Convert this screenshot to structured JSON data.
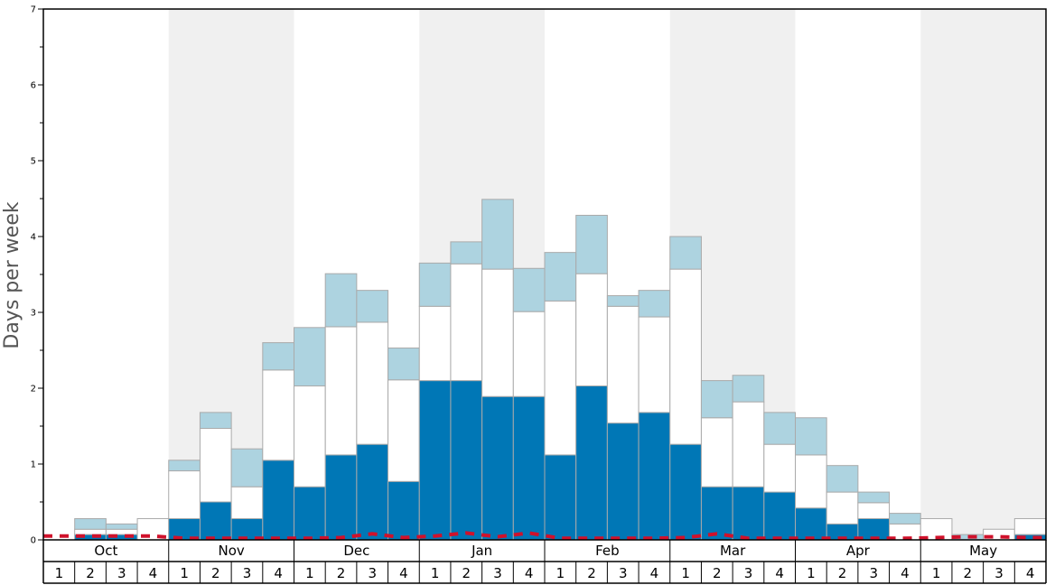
{
  "chart_data": {
    "type": "bar",
    "stacked": true,
    "ylabel": "Days per week",
    "ylim": [
      0,
      7
    ],
    "yticks": [
      0,
      1,
      2,
      3,
      4,
      5,
      6,
      7
    ],
    "months": [
      "Oct",
      "Nov",
      "Dec",
      "Jan",
      "Feb",
      "Mar",
      "Apr",
      "May"
    ],
    "week_labels": [
      "1",
      "2",
      "3",
      "4"
    ],
    "shaded_months": [
      "Nov",
      "Jan",
      "Mar",
      "May"
    ],
    "grid": false,
    "colors": {
      "dark": "#0077b6",
      "white": "#ffffff",
      "light": "#add3e0",
      "line": "#d0112b",
      "shade": "#f0f0f0",
      "bar_edge": "#aaaaaa"
    },
    "series": [
      {
        "key": "dark",
        "values": [
          0,
          0.07,
          0.07,
          0,
          0.28,
          0.5,
          0.28,
          1.05,
          0.7,
          1.12,
          1.26,
          0.77,
          2.1,
          2.1,
          1.89,
          1.89,
          1.12,
          2.03,
          1.54,
          1.68,
          1.26,
          0.7,
          0.7,
          0.63,
          0.42,
          0.21,
          0.28,
          0,
          0,
          0,
          0,
          0.07
        ]
      },
      {
        "key": "white",
        "values": [
          0,
          0.07,
          0.07,
          0.28,
          0.63,
          0.97,
          0.42,
          1.19,
          1.33,
          1.69,
          1.61,
          1.34,
          0.98,
          1.54,
          1.68,
          1.12,
          2.03,
          1.48,
          1.54,
          1.26,
          2.31,
          0.91,
          1.12,
          0.63,
          0.7,
          0.42,
          0.21,
          0.21,
          0.28,
          0,
          0.14,
          0.21
        ]
      },
      {
        "key": "light",
        "values": [
          0,
          0.14,
          0.07,
          0,
          0.14,
          0.21,
          0.5,
          0.36,
          0.77,
          0.7,
          0.42,
          0.42,
          0.57,
          0.29,
          0.92,
          0.57,
          0.64,
          0.77,
          0.14,
          0.35,
          0.43,
          0.49,
          0.35,
          0.42,
          0.49,
          0.35,
          0.14,
          0.14,
          0,
          0.07,
          0,
          0
        ]
      }
    ],
    "line": {
      "style": "dashed",
      "values": [
        0.05,
        0.05,
        0.05,
        0.05,
        0.02,
        0.02,
        0.02,
        0.02,
        0.02,
        0.03,
        0.08,
        0.03,
        0.05,
        0.09,
        0.04,
        0.09,
        0.02,
        0.02,
        0.02,
        0.02,
        0.03,
        0.08,
        0.02,
        0.02,
        0.02,
        0.02,
        0.02,
        0.02,
        0.03,
        0.04,
        0.04,
        0.03
      ]
    }
  }
}
